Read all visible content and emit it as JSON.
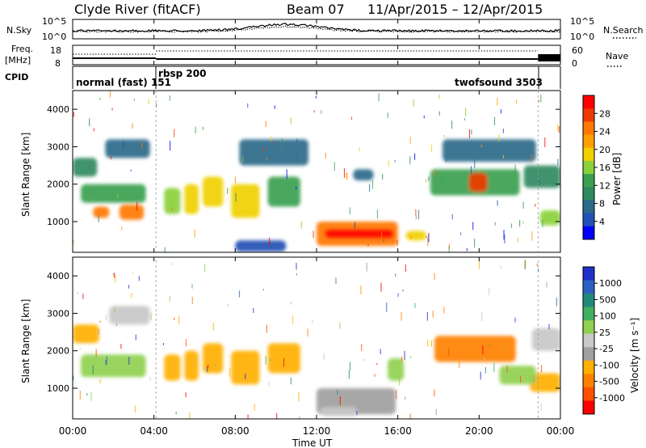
{
  "header": {
    "station": "Clyde River (fitACF)",
    "beam": "Beam 07",
    "date_range": "11/Apr/2015 – 12/Apr/2015"
  },
  "top_panels": {
    "nsky_label": "N.Sky",
    "nsearch_label": "N.Search",
    "nsky_ticks": [
      "10^5",
      "10^0"
    ],
    "nsearch_ticks": [
      "10^5",
      "10^0"
    ],
    "freq_label_1": "Freq.",
    "freq_label_2": "[MHz]",
    "freq_ticks": [
      "18",
      "8"
    ],
    "nave_label": "Nave",
    "nave_ticks": [
      "60",
      "0"
    ],
    "cpid_label": "CPID",
    "cpid_segments": [
      {
        "label": "normal (fast) 151",
        "start_h": 0.0,
        "end_h": 4.1
      },
      {
        "label": "rbsp 200",
        "start_h": 4.1,
        "end_h": 22.9
      },
      {
        "label": "twofsound 3503",
        "start_h": 22.9,
        "end_h": 24.0
      }
    ]
  },
  "axes": {
    "ylabel": "Slant Range [km]",
    "xlabel": "Time UT",
    "yticks": [
      "1000",
      "2000",
      "3000",
      "4000"
    ],
    "xticks": [
      "00:00",
      "04:00",
      "08:00",
      "12:00",
      "16:00",
      "20:00",
      "00:00"
    ]
  },
  "power_colorbar": {
    "label": "Power [dB]",
    "ticks": [
      "28",
      "24",
      "20",
      "16",
      "12",
      "8",
      "4"
    ]
  },
  "velocity_colorbar": {
    "label": "Velocity [m s⁻¹]",
    "ticks": [
      "1000",
      "500",
      "100",
      "25",
      "-25",
      "-100",
      "-500",
      "-1000"
    ]
  },
  "colors": {
    "power_scale": [
      "#ff0000",
      "#ee3a00",
      "#ff7800",
      "#ffa000",
      "#f0d000",
      "#8ad03a",
      "#3aa050",
      "#2f8a60",
      "#2a6a8a",
      "#2250b4",
      "#0000ff"
    ],
    "velocity_scale": [
      "#2030c8",
      "#2a60c0",
      "#1f8a78",
      "#40b060",
      "#90d050",
      "#c8c8c8",
      "#a0a0a0",
      "#ffb000",
      "#ff8000",
      "#ff5000",
      "#ff0000"
    ]
  },
  "chart_data": {
    "type": "heatmap",
    "title": "Clyde River (fitACF)   Beam 07   11/Apr/2015 – 12/Apr/2015",
    "xlabel": "Time UT",
    "ylabel": "Slant Range [km]",
    "xlim_hours": [
      0,
      24
    ],
    "ylim_km": [
      180,
      4500
    ],
    "panels": [
      {
        "name": "Power [dB]",
        "clim": [
          0,
          30
        ],
        "blobs": [
          {
            "t0": 0.0,
            "t1": 1.2,
            "r0": 2200,
            "r1": 2700,
            "value": 10
          },
          {
            "t0": 0.4,
            "t1": 3.6,
            "r0": 1500,
            "r1": 2000,
            "value": 14
          },
          {
            "t0": 1.0,
            "t1": 1.8,
            "r0": 1100,
            "r1": 1400,
            "value": 24
          },
          {
            "t0": 1.6,
            "t1": 3.8,
            "r0": 2700,
            "r1": 3200,
            "value": 8
          },
          {
            "t0": 2.3,
            "t1": 3.5,
            "r0": 1050,
            "r1": 1450,
            "value": 24
          },
          {
            "t0": 4.5,
            "t1": 5.3,
            "r0": 1200,
            "r1": 1900,
            "value": 16
          },
          {
            "t0": 5.5,
            "t1": 6.2,
            "r0": 1200,
            "r1": 2000,
            "value": 18
          },
          {
            "t0": 6.4,
            "t1": 7.4,
            "r0": 1400,
            "r1": 2200,
            "value": 18
          },
          {
            "t0": 7.8,
            "t1": 9.2,
            "r0": 1100,
            "r1": 2000,
            "value": 20
          },
          {
            "t0": 8.2,
            "t1": 11.6,
            "r0": 2500,
            "r1": 3200,
            "value": 8
          },
          {
            "t0": 9.6,
            "t1": 11.2,
            "r0": 1400,
            "r1": 2200,
            "value": 12
          },
          {
            "t0": 12.0,
            "t1": 16.0,
            "r0": 350,
            "r1": 1000,
            "value": 24
          },
          {
            "t0": 12.4,
            "t1": 15.8,
            "r0": 550,
            "r1": 800,
            "value": 30
          },
          {
            "t0": 13.8,
            "t1": 14.8,
            "r0": 2100,
            "r1": 2400,
            "value": 8
          },
          {
            "t0": 16.4,
            "t1": 17.4,
            "r0": 500,
            "r1": 750,
            "value": 20
          },
          {
            "t0": 17.6,
            "t1": 22.0,
            "r0": 1700,
            "r1": 2400,
            "value": 14
          },
          {
            "t0": 19.5,
            "t1": 20.4,
            "r0": 1800,
            "r1": 2300,
            "value": 26
          },
          {
            "t0": 18.2,
            "t1": 22.8,
            "r0": 2600,
            "r1": 3200,
            "value": 8
          },
          {
            "t0": 23.0,
            "t1": 24.0,
            "r0": 900,
            "r1": 1300,
            "value": 16
          },
          {
            "t0": 22.2,
            "t1": 24.0,
            "r0": 1900,
            "r1": 2500,
            "value": 10
          },
          {
            "t0": 8.0,
            "t1": 10.5,
            "r0": 200,
            "r1": 500,
            "value": 6
          }
        ]
      },
      {
        "name": "Velocity [m s⁻¹]",
        "clim": [
          -1000,
          1000
        ],
        "blobs": [
          {
            "t0": 0.0,
            "t1": 1.3,
            "r0": 2200,
            "r1": 2700,
            "value": -300
          },
          {
            "t0": 0.4,
            "t1": 3.6,
            "r0": 1300,
            "r1": 1900,
            "value": 150
          },
          {
            "t0": 1.8,
            "t1": 3.8,
            "r0": 2700,
            "r1": 3200,
            "value": -50
          },
          {
            "t0": 4.5,
            "t1": 5.3,
            "r0": 1200,
            "r1": 1900,
            "value": -300
          },
          {
            "t0": 5.5,
            "t1": 6.2,
            "r0": 1200,
            "r1": 2000,
            "value": -400
          },
          {
            "t0": 6.4,
            "t1": 7.4,
            "r0": 1400,
            "r1": 2200,
            "value": -400
          },
          {
            "t0": 7.8,
            "t1": 9.2,
            "r0": 1100,
            "r1": 2000,
            "value": -350
          },
          {
            "t0": 9.6,
            "t1": 11.2,
            "r0": 1400,
            "r1": 2200,
            "value": -300
          },
          {
            "t0": 12.0,
            "t1": 15.9,
            "r0": 300,
            "r1": 1000,
            "value": -200
          },
          {
            "t0": 12.2,
            "t1": 14.0,
            "r0": 250,
            "r1": 500,
            "value": 0
          },
          {
            "t0": 17.8,
            "t1": 21.8,
            "r0": 1700,
            "r1": 2400,
            "value": -500
          },
          {
            "t0": 15.5,
            "t1": 16.3,
            "r0": 1200,
            "r1": 1800,
            "value": 150
          },
          {
            "t0": 22.5,
            "t1": 24.0,
            "r0": 900,
            "r1": 1400,
            "value": -300
          },
          {
            "t0": 22.6,
            "t1": 24.0,
            "r0": 2000,
            "r1": 2600,
            "value": 0
          },
          {
            "t0": 21.0,
            "t1": 22.8,
            "r0": 1100,
            "r1": 1600,
            "value": 150
          }
        ]
      }
    ]
  }
}
